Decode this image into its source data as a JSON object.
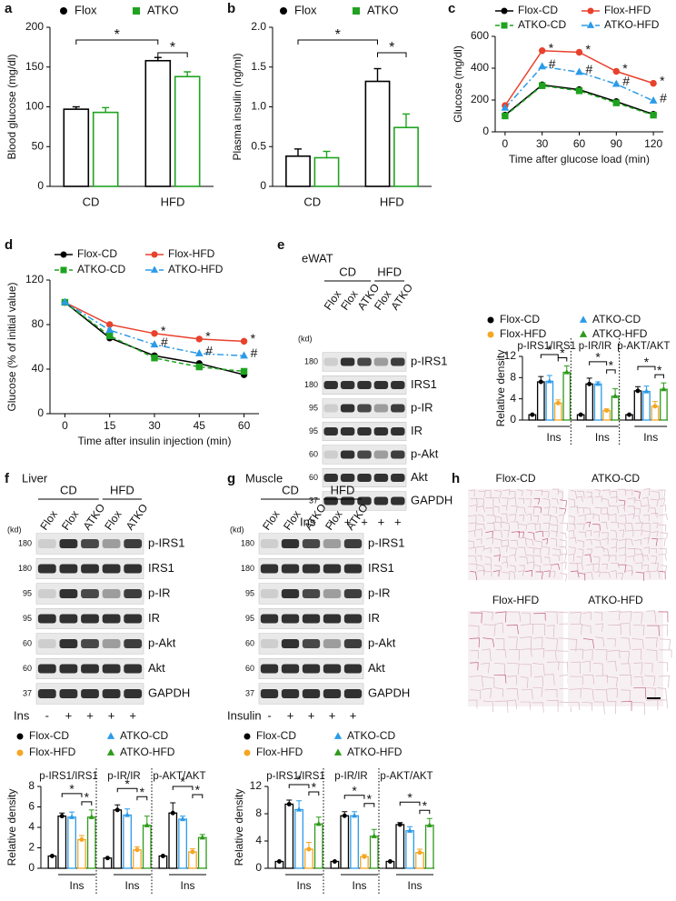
{
  "chart_data": [
    {
      "type": "bar",
      "panel": "a",
      "ylabel": "Blood glucose (mg/dl)",
      "categories": [
        "CD",
        "HFD"
      ],
      "series": [
        {
          "name": "Flox",
          "color": "#000000",
          "marker": "circle",
          "values": [
            97,
            158
          ],
          "errors": [
            3,
            4
          ]
        },
        {
          "name": "ATKO",
          "color": "#1fa31f",
          "marker": "square",
          "values": [
            93,
            138
          ],
          "errors": [
            6,
            6
          ]
        }
      ],
      "ylim": [
        0,
        200
      ],
      "yticks": [
        0,
        50,
        100,
        150,
        200
      ],
      "brackets": [
        "*",
        "*"
      ]
    },
    {
      "type": "bar",
      "panel": "b",
      "ylabel": "Plasma insulin (ng/ml)",
      "categories": [
        "CD",
        "HFD"
      ],
      "series": [
        {
          "name": "Flox",
          "color": "#000000",
          "marker": "circle",
          "values": [
            0.38,
            1.32
          ],
          "errors": [
            0.09,
            0.16
          ]
        },
        {
          "name": "ATKO",
          "color": "#1fa31f",
          "marker": "square",
          "values": [
            0.36,
            0.74
          ],
          "errors": [
            0.08,
            0.17
          ]
        }
      ],
      "ylim": [
        0,
        2
      ],
      "yticks": [
        0,
        0.5,
        {
          "value": 1,
          "label": "1.0"
        },
        1.5,
        {
          "value": 2,
          "label": "2.0"
        }
      ],
      "brackets": [
        "*",
        "*"
      ]
    },
    {
      "type": "line",
      "panel": "c",
      "ylabel": "Glucose (mg/dl)",
      "xlabel": "Time after glucose load (min)",
      "x": [
        0,
        30,
        60,
        90,
        120
      ],
      "xlim": [
        -8,
        128
      ],
      "xticks": [
        0,
        30,
        60,
        90,
        120
      ],
      "ylim": [
        0,
        600
      ],
      "yticks": [
        0,
        200,
        400,
        600
      ],
      "series": [
        {
          "name": "Flox-CD",
          "color": "#000000",
          "marker": "circle",
          "dash": "",
          "values": [
            105,
            295,
            265,
            190,
            110
          ],
          "point_labels": [
            null,
            null,
            null,
            null,
            null
          ]
        },
        {
          "name": "Flox-HFD",
          "color": "#e8412c",
          "marker": "circle",
          "dash": "",
          "values": [
            165,
            510,
            500,
            380,
            305
          ],
          "point_labels": [
            null,
            "*",
            "*",
            "*",
            "*"
          ]
        },
        {
          "name": "ATKO-CD",
          "color": "#1fa31f",
          "marker": "square",
          "dash": "5,3",
          "values": [
            100,
            290,
            258,
            182,
            105
          ],
          "point_labels": [
            null,
            null,
            null,
            null,
            null
          ]
        },
        {
          "name": "ATKO-HFD",
          "color": "#2b9be8",
          "marker": "triangle",
          "dash": "7,3,2,3",
          "values": [
            150,
            410,
            375,
            300,
            195
          ],
          "point_labels": [
            null,
            "#",
            "#",
            "#",
            "#"
          ]
        }
      ]
    },
    {
      "type": "line",
      "panel": "d",
      "ylabel": "Glucose (% of initial value)",
      "xlabel": "Time after insulin injection (min)",
      "x": [
        0,
        15,
        30,
        45,
        60
      ],
      "xlim": [
        -5,
        65
      ],
      "xticks": [
        0,
        15,
        30,
        45,
        60
      ],
      "ylim": [
        0,
        120
      ],
      "yticks": [
        0,
        40,
        80,
        120
      ],
      "series": [
        {
          "name": "Flox-CD",
          "color": "#000000",
          "marker": "circle",
          "dash": "",
          "values": [
            100,
            68,
            52,
            45,
            35
          ],
          "point_labels": [
            null,
            null,
            null,
            null,
            null
          ]
        },
        {
          "name": "Flox-HFD",
          "color": "#e8412c",
          "marker": "circle",
          "dash": "",
          "values": [
            100,
            80,
            72,
            67,
            65
          ],
          "point_labels": [
            null,
            null,
            "*",
            "*",
            "*"
          ]
        },
        {
          "name": "ATKO-CD",
          "color": "#1fa31f",
          "marker": "square",
          "dash": "5,3",
          "values": [
            100,
            70,
            50,
            42,
            38
          ],
          "point_labels": [
            null,
            null,
            null,
            null,
            null
          ]
        },
        {
          "name": "ATKO-HFD",
          "color": "#2b9be8",
          "marker": "triangle",
          "dash": "7,3,2,3",
          "values": [
            100,
            75,
            62,
            54,
            52
          ],
          "point_labels": [
            null,
            null,
            "#",
            "#",
            "#"
          ]
        }
      ]
    },
    {
      "type": "grouped_bar",
      "ylabel": "Relative density",
      "groups": [
        "p-IRS1/IRS1",
        "p-IR/IR",
        "p-AKT/AKT"
      ],
      "group_xlabel": "Ins",
      "ylim": [
        0,
        12
      ],
      "yticks": [
        0,
        4,
        8,
        12
      ],
      "basal": {
        "color": "#000000",
        "values": [
          1.0,
          1.0,
          1.0
        ]
      },
      "series": [
        {
          "name": "Flox-CD",
          "color": "#000000",
          "marker": "circle",
          "values": [
            7.2,
            6.8,
            5.5
          ],
          "errors": [
            1.0,
            1.1,
            0.8
          ]
        },
        {
          "name": "ATKO-CD",
          "color": "#2b9be8",
          "marker": "triangle",
          "values": [
            7.3,
            6.8,
            5.4
          ],
          "errors": [
            1.1,
            0.4,
            1.0
          ]
        },
        {
          "name": "Flox-HFD",
          "color": "#f5a623",
          "marker": "circle",
          "values": [
            3.2,
            1.8,
            2.6
          ],
          "errors": [
            0.6,
            0.3,
            0.9
          ]
        },
        {
          "name": "ATKO-HFD",
          "color": "#2e9a1a",
          "marker": "triangle",
          "values": [
            9.0,
            4.5,
            5.8
          ],
          "errors": [
            1.2,
            1.4,
            1.2
          ]
        }
      ],
      "brackets": [
        "*",
        "*"
      ]
    },
    {
      "type": "grouped_bar",
      "ylabel": "Relative density",
      "groups": [
        "p-IRS1/IRS1",
        "p-IR/IR",
        "p-AKT/AKT"
      ],
      "group_xlabel": "Ins",
      "ylim": [
        0,
        8
      ],
      "yticks": [
        0,
        2,
        4,
        6,
        8
      ],
      "basal": {
        "color": "#000000",
        "values": [
          1.2,
          1.0,
          1.2
        ]
      },
      "series": [
        {
          "name": "Flox-CD",
          "color": "#000000",
          "marker": "circle",
          "values": [
            5.1,
            5.7,
            5.4
          ],
          "errors": [
            0.3,
            0.5,
            1.0
          ]
        },
        {
          "name": "ATKO-CD",
          "color": "#2b9be8",
          "marker": "triangle",
          "values": [
            5.0,
            5.2,
            4.8
          ],
          "errors": [
            0.5,
            0.6,
            0.3
          ]
        },
        {
          "name": "Flox-HFD",
          "color": "#f5a623",
          "marker": "circle",
          "values": [
            2.8,
            1.8,
            1.6
          ],
          "errors": [
            0.4,
            0.3,
            0.3
          ]
        },
        {
          "name": "ATKO-HFD",
          "color": "#2e9a1a",
          "marker": "triangle",
          "values": [
            5.0,
            4.2,
            3.0
          ],
          "errors": [
            0.7,
            0.9,
            0.3
          ]
        }
      ],
      "brackets": [
        "*",
        "*"
      ]
    },
    {
      "type": "grouped_bar",
      "ylabel": "Relative density",
      "groups": [
        "p-IRS1/IRS1",
        "p-IR/IR",
        "p-AKT/AKT"
      ],
      "group_xlabel": "Ins",
      "ylim": [
        0,
        12
      ],
      "yticks": [
        0,
        4,
        8,
        12
      ],
      "basal": {
        "color": "#000000",
        "values": [
          1.0,
          1.0,
          1.0
        ]
      },
      "series": [
        {
          "name": "Flox-CD",
          "color": "#000000",
          "marker": "circle",
          "values": [
            9.4,
            7.7,
            6.4
          ],
          "errors": [
            0.6,
            0.6,
            0.3
          ]
        },
        {
          "name": "ATKO-CD",
          "color": "#2b9be8",
          "marker": "triangle",
          "values": [
            8.6,
            7.7,
            5.5
          ],
          "errors": [
            1.3,
            0.6,
            0.6
          ]
        },
        {
          "name": "Flox-HFD",
          "color": "#f5a623",
          "marker": "circle",
          "values": [
            2.8,
            1.7,
            2.3
          ],
          "errors": [
            1.0,
            0.3,
            0.5
          ]
        },
        {
          "name": "ATKO-HFD",
          "color": "#2e9a1a",
          "marker": "triangle",
          "values": [
            6.5,
            4.7,
            6.3
          ],
          "errors": [
            1.0,
            1.0,
            1.0
          ]
        }
      ],
      "brackets": [
        "*",
        "*"
      ]
    }
  ],
  "blots": [
    {
      "panel": "e",
      "tissue": "eWAT",
      "groups": [
        "CD",
        "HFD"
      ],
      "lanes": [
        "Flox",
        "Flox",
        "ATKO",
        "Flox",
        "ATKO"
      ],
      "kd_unit": "(kd)",
      "kd": [
        180,
        180,
        95,
        95,
        60,
        60,
        37
      ],
      "bands": [
        "p-IRS1",
        "IRS1",
        "p-IR",
        "IR",
        "p-Akt",
        "Akt",
        "GAPDH"
      ],
      "treatment_label": "Ins",
      "treatment": [
        "-",
        "+",
        "+",
        "+",
        "+"
      ]
    },
    {
      "panel": "f",
      "tissue": "Liver",
      "groups": [
        "CD",
        "HFD"
      ],
      "lanes": [
        "Flox",
        "Flox",
        "ATKO",
        "Flox",
        "ATKO"
      ],
      "kd_unit": "(kd)",
      "kd": [
        180,
        180,
        95,
        95,
        60,
        60,
        37
      ],
      "bands": [
        "p-IRS1",
        "IRS1",
        "p-IR",
        "IR",
        "p-Akt",
        "Akt",
        "GAPDH"
      ],
      "treatment_label": "Ins",
      "treatment": [
        "-",
        "+",
        "+",
        "+",
        "+"
      ]
    },
    {
      "panel": "g",
      "tissue": "Muscle",
      "groups": [
        "CD",
        "HFD"
      ],
      "lanes": [
        "Flox",
        "Flox",
        "ATKO",
        "Flox",
        "ATKO"
      ],
      "kd_unit": "(kd)",
      "kd": [
        180,
        180,
        95,
        95,
        60,
        60,
        37
      ],
      "bands": [
        "p-IRS1",
        "IRS1",
        "p-IR",
        "IR",
        "p-Akt",
        "Akt",
        "GAPDH"
      ],
      "treatment_label": "Insulin",
      "treatment": [
        "-",
        "+",
        "+",
        "+",
        "+"
      ]
    }
  ],
  "histology": {
    "panel": "h",
    "titles": [
      "Flox-CD",
      "ATKO-CD",
      "Flox-HFD",
      "ATKO-HFD"
    ]
  }
}
